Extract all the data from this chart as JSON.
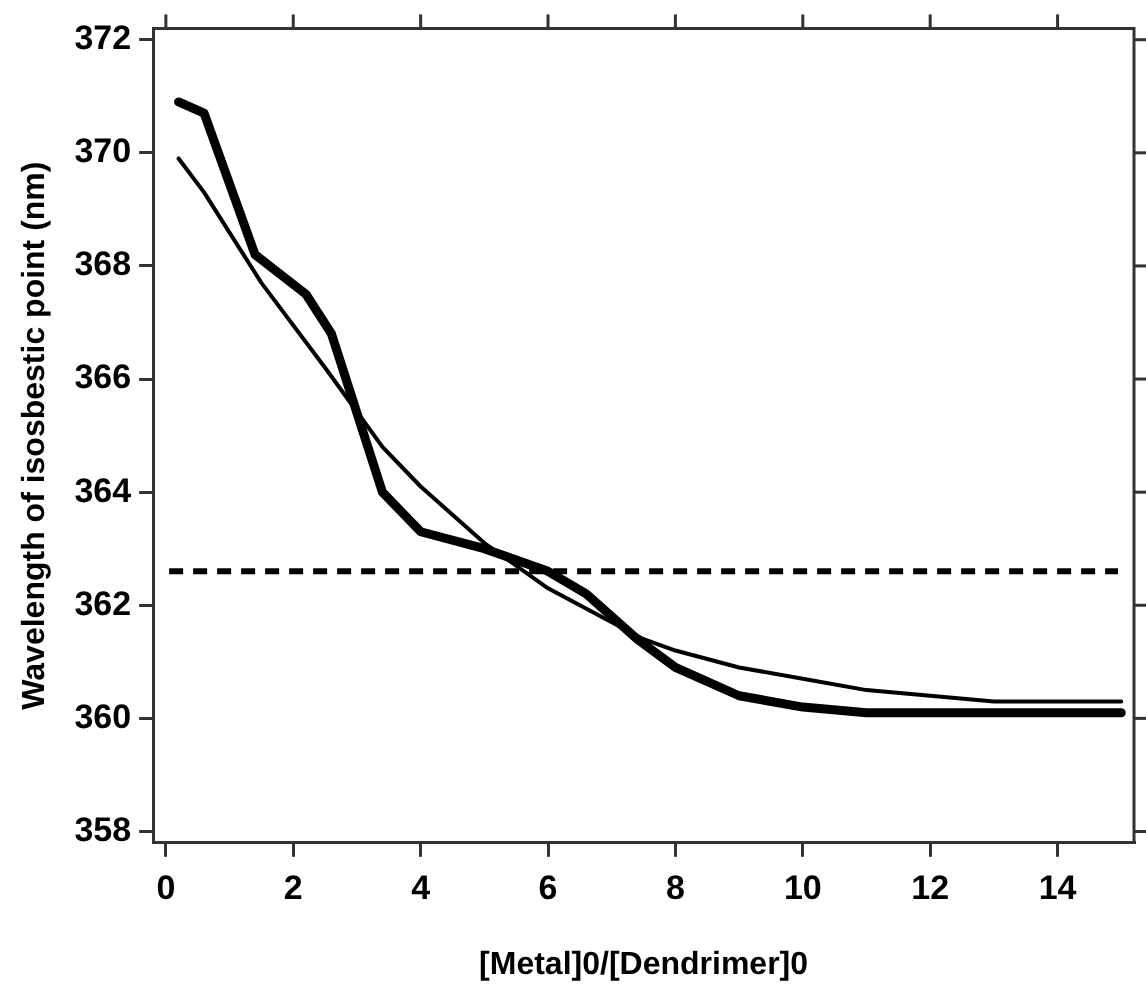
{
  "chart_data": {
    "type": "line",
    "xlabel": "[Metal]0/[Dendrimer]0",
    "ylabel": "Wavelength of isosbestic point (nm)",
    "xlim": [
      -0.2,
      15.2
    ],
    "xticks": [
      0,
      2,
      4,
      6,
      8,
      10,
      12,
      14
    ],
    "ylim": [
      357.8,
      372.2
    ],
    "yticks": [
      358,
      360,
      362,
      364,
      366,
      368,
      370,
      372
    ],
    "grid": false,
    "legend": false,
    "marker": "none",
    "series": [
      {
        "color": "#000000",
        "x": [
          0.2,
          0.6,
          1.4,
          2.2,
          2.6,
          3.4,
          4,
          5,
          6,
          6.6,
          7.4,
          8,
          9,
          10,
          11,
          12,
          15
        ],
        "values": [
          370.9,
          370.7,
          368.2,
          367.5,
          366.8,
          364.0,
          363.3,
          363.0,
          362.6,
          362.2,
          361.4,
          360.9,
          360.4,
          360.2,
          360.1,
          360.1,
          360.1
        ]
      },
      {
        "color": "#000000",
        "x": [
          0.2,
          0.6,
          1.5,
          2.5,
          3.4,
          4,
          5,
          6,
          7,
          7.5,
          8,
          9,
          10,
          11,
          12,
          13,
          15
        ],
        "values": [
          369.9,
          369.3,
          367.7,
          366.2,
          364.8,
          364.1,
          363.1,
          362.3,
          361.7,
          361.4,
          361.2,
          360.9,
          360.7,
          360.5,
          360.4,
          360.3,
          360.3
        ]
      }
    ],
    "ref_lines": [
      {
        "axis": "y",
        "value": 362.6,
        "color": "#000000",
        "line_style": "dashed"
      }
    ]
  }
}
